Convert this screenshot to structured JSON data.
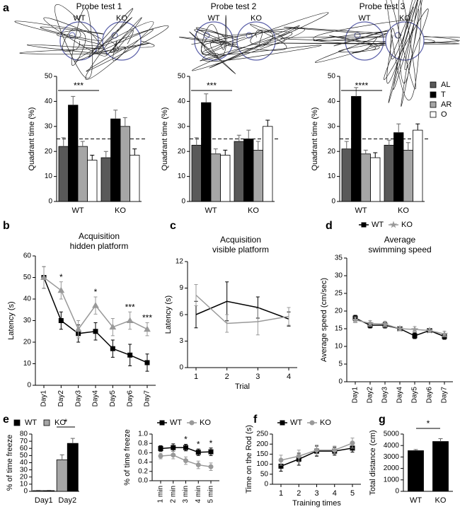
{
  "chart_data": [
    {
      "panel": "a",
      "type": "bar",
      "title": "Probe test 1",
      "track_labels": [
        "WT",
        "KO"
      ],
      "ylabel": "Quadrant time (%)",
      "categories": [
        "WT",
        "KO"
      ],
      "series": [
        {
          "color": "#595959",
          "values": [
            22,
            17.5
          ],
          "errors": [
            3.5,
            2.5
          ]
        },
        {
          "color": "#000000",
          "values": [
            38.5,
            33
          ],
          "errors": [
            3.5,
            3.5
          ]
        },
        {
          "color": "#a6a6a6",
          "values": [
            22,
            30
          ],
          "errors": [
            2,
            3.5
          ]
        },
        {
          "color": "#ffffff",
          "values": [
            16.5,
            18.5
          ],
          "errors": [
            2,
            2.5
          ]
        }
      ],
      "ylim": [
        0,
        50
      ],
      "yticks": [
        0,
        10,
        20,
        30,
        40,
        50
      ],
      "reference_line": 25,
      "significance": "***"
    },
    {
      "type": "bar",
      "title": "Probe test 2",
      "track_labels": [
        "WT",
        "KO"
      ],
      "ylabel": "Quadrant time (%)",
      "categories": [
        "WT",
        "KO"
      ],
      "series": [
        {
          "color": "#595959",
          "values": [
            22.5,
            24
          ],
          "errors": [
            3,
            2.5
          ]
        },
        {
          "color": "#000000",
          "values": [
            39.5,
            25
          ],
          "errors": [
            3.5,
            3.5
          ]
        },
        {
          "color": "#a6a6a6",
          "values": [
            19,
            20.5
          ],
          "errors": [
            2,
            3.5
          ]
        },
        {
          "color": "#ffffff",
          "values": [
            18.5,
            30
          ],
          "errors": [
            2,
            2.5
          ]
        }
      ],
      "ylim": [
        0,
        50
      ],
      "yticks": [
        0,
        10,
        20,
        30,
        40,
        50
      ],
      "reference_line": 25,
      "significance": "***"
    },
    {
      "type": "bar",
      "title": "Probe test 3",
      "track_labels": [
        "WT",
        "KO"
      ],
      "ylabel": "Quadrant time (%)",
      "categories": [
        "WT",
        "KO"
      ],
      "series": [
        {
          "name": "AL",
          "color": "#595959",
          "values": [
            21,
            22.5
          ],
          "errors": [
            3,
            2
          ]
        },
        {
          "name": "T",
          "color": "#000000",
          "values": [
            42,
            27.5
          ],
          "errors": [
            3.5,
            3.5
          ]
        },
        {
          "name": "AR",
          "color": "#a6a6a6",
          "values": [
            19,
            20.5
          ],
          "errors": [
            1.5,
            3
          ]
        },
        {
          "name": "O",
          "color": "#ffffff",
          "values": [
            17.5,
            28.5
          ],
          "errors": [
            2,
            2.5
          ]
        }
      ],
      "ylim": [
        0,
        50
      ],
      "yticks": [
        0,
        10,
        20,
        30,
        40,
        50
      ],
      "reference_line": 25,
      "significance": "****"
    },
    {
      "panel": "b",
      "type": "line",
      "title_lines": [
        "Acquisition",
        "hidden platform"
      ],
      "ylabel": "Latency (s)",
      "categories": [
        "Day1",
        "Day2",
        "Day3",
        "Day4",
        "Day5",
        "Day6",
        "Day7"
      ],
      "series": [
        {
          "color": "#000000",
          "marker": "square",
          "values": [
            50,
            30,
            24,
            25,
            17,
            14,
            10.5
          ],
          "errors": [
            5,
            4,
            4,
            4,
            4,
            5,
            4
          ]
        },
        {
          "color": "#999999",
          "marker": "triangle",
          "values": [
            50,
            44,
            26,
            37,
            27,
            30,
            26
          ],
          "errors": [
            5,
            4,
            4,
            4,
            4,
            4,
            3
          ]
        }
      ],
      "ylim": [
        0,
        60
      ],
      "yticks": [
        0,
        10,
        20,
        30,
        40,
        50,
        60
      ],
      "significance": [
        null,
        "*",
        null,
        "*",
        null,
        "***",
        "***"
      ]
    },
    {
      "panel": "c",
      "type": "line",
      "title_lines": [
        "Acquisition",
        "visible platform"
      ],
      "ylabel": "Latency (s)",
      "xlabel": "Trial",
      "categories": [
        "1",
        "2",
        "3",
        "4"
      ],
      "series": [
        {
          "color": "#000000",
          "values": [
            6,
            7.5,
            6.8,
            5.5
          ],
          "errors": [
            1.5,
            2.2,
            1.2,
            0.8
          ]
        },
        {
          "color": "#999999",
          "values": [
            8.2,
            5,
            5.2,
            5.8
          ],
          "errors": [
            1.2,
            1,
            1.5,
            1
          ]
        }
      ],
      "ylim": [
        0,
        12
      ],
      "yticks": [
        0,
        3,
        6,
        9,
        12
      ]
    },
    {
      "panel": "d",
      "type": "line",
      "title_lines": [
        "Average",
        "swimming speed"
      ],
      "ylabel": "Average speed (cm/sec)",
      "categories": [
        "Day1",
        "Day2",
        "Day3",
        "Day4",
        "Day5",
        "Day6",
        "Day7"
      ],
      "series": [
        {
          "name": "WT",
          "color": "#000000",
          "marker": "square",
          "values": [
            18,
            16,
            16,
            15,
            13,
            14.5,
            12.8
          ],
          "errors": [
            0.8,
            0.8,
            0.8,
            0.6,
            0.8,
            0.6,
            0.8
          ]
        },
        {
          "name": "KO",
          "color": "#999999",
          "marker": "star",
          "values": [
            17.5,
            16.5,
            16.3,
            15,
            14.8,
            14.5,
            13.5
          ],
          "errors": [
            0.8,
            0.8,
            0.8,
            0.6,
            0.8,
            0.6,
            0.8
          ]
        }
      ],
      "ylim": [
        0,
        35
      ],
      "yticks": [
        0,
        5,
        10,
        15,
        20,
        25,
        30,
        35
      ]
    },
    {
      "panel": "e",
      "type": "bar",
      "ylabel": "% of time freeze",
      "categories": [
        "Day1",
        "Day2"
      ],
      "series": [
        {
          "name": "WT",
          "color": "#000000",
          "values": [
            1,
            67
          ],
          "errors": [
            0.5,
            7
          ]
        },
        {
          "name": "KO",
          "color": "#a6a6a6",
          "values": [
            1,
            44
          ],
          "errors": [
            0.5,
            7
          ]
        }
      ],
      "ylim": [
        0,
        80
      ],
      "yticks": [
        0,
        10,
        20,
        30,
        40,
        50,
        60,
        70,
        80
      ],
      "significance": "*"
    },
    {
      "type": "line",
      "ylabel": "% of  time freeze",
      "categories": [
        "1 min",
        "2 min",
        "3 min",
        "4 min",
        "5 min"
      ],
      "series": [
        {
          "name": "WT",
          "color": "#000000",
          "marker": "square",
          "values": [
            0.69,
            0.71,
            0.71,
            0.61,
            0.62
          ],
          "errors": [
            0.06,
            0.08,
            0.07,
            0.07,
            0.08
          ]
        },
        {
          "name": "KO",
          "color": "#999999",
          "marker": "circle",
          "values": [
            0.53,
            0.55,
            0.43,
            0.34,
            0.3
          ],
          "errors": [
            0.06,
            0.08,
            0.08,
            0.08,
            0.08
          ]
        }
      ],
      "ylim": [
        0,
        1
      ],
      "yticks": [
        {
          "value": 0,
          "label": "0.0"
        },
        {
          "value": 0.2,
          "label": "0.2"
        },
        {
          "value": 0.4,
          "label": "0.4"
        },
        {
          "value": 0.6,
          "label": "0.6"
        },
        {
          "value": 0.8,
          "label": "0.8"
        },
        {
          "value": 1,
          "label": "1.0"
        }
      ],
      "significance": [
        null,
        null,
        "*",
        "*",
        "*"
      ]
    },
    {
      "panel": "f",
      "type": "line",
      "ylabel": "Time on the Rod (s)",
      "xlabel": "Training times",
      "categories": [
        "1",
        "2",
        "3",
        "4",
        "5"
      ],
      "series": [
        {
          "name": "WT",
          "color": "#000000",
          "marker": "square",
          "values": [
            90,
            125,
            165,
            165,
            180
          ],
          "errors": [
            25,
            30,
            25,
            20,
            20
          ]
        },
        {
          "name": "KO",
          "color": "#999999",
          "marker": "circle",
          "values": [
            120,
            140,
            170,
            170,
            205
          ],
          "errors": [
            25,
            30,
            25,
            20,
            25
          ]
        }
      ],
      "ylim": [
        0,
        250
      ],
      "yticks": [
        0,
        50,
        100,
        150,
        200,
        250
      ]
    },
    {
      "panel": "g",
      "type": "bar",
      "ylabel": "Total distance (cm)",
      "categories": [
        "WT",
        "KO"
      ],
      "series": [
        {
          "color": "#000000",
          "values": [
            3550,
            4350
          ],
          "errors": [
            100,
            250
          ]
        }
      ],
      "ylim": [
        0,
        5000
      ],
      "yticks": [
        0,
        1000,
        2000,
        3000,
        4000,
        5000
      ],
      "significance": "*"
    }
  ]
}
